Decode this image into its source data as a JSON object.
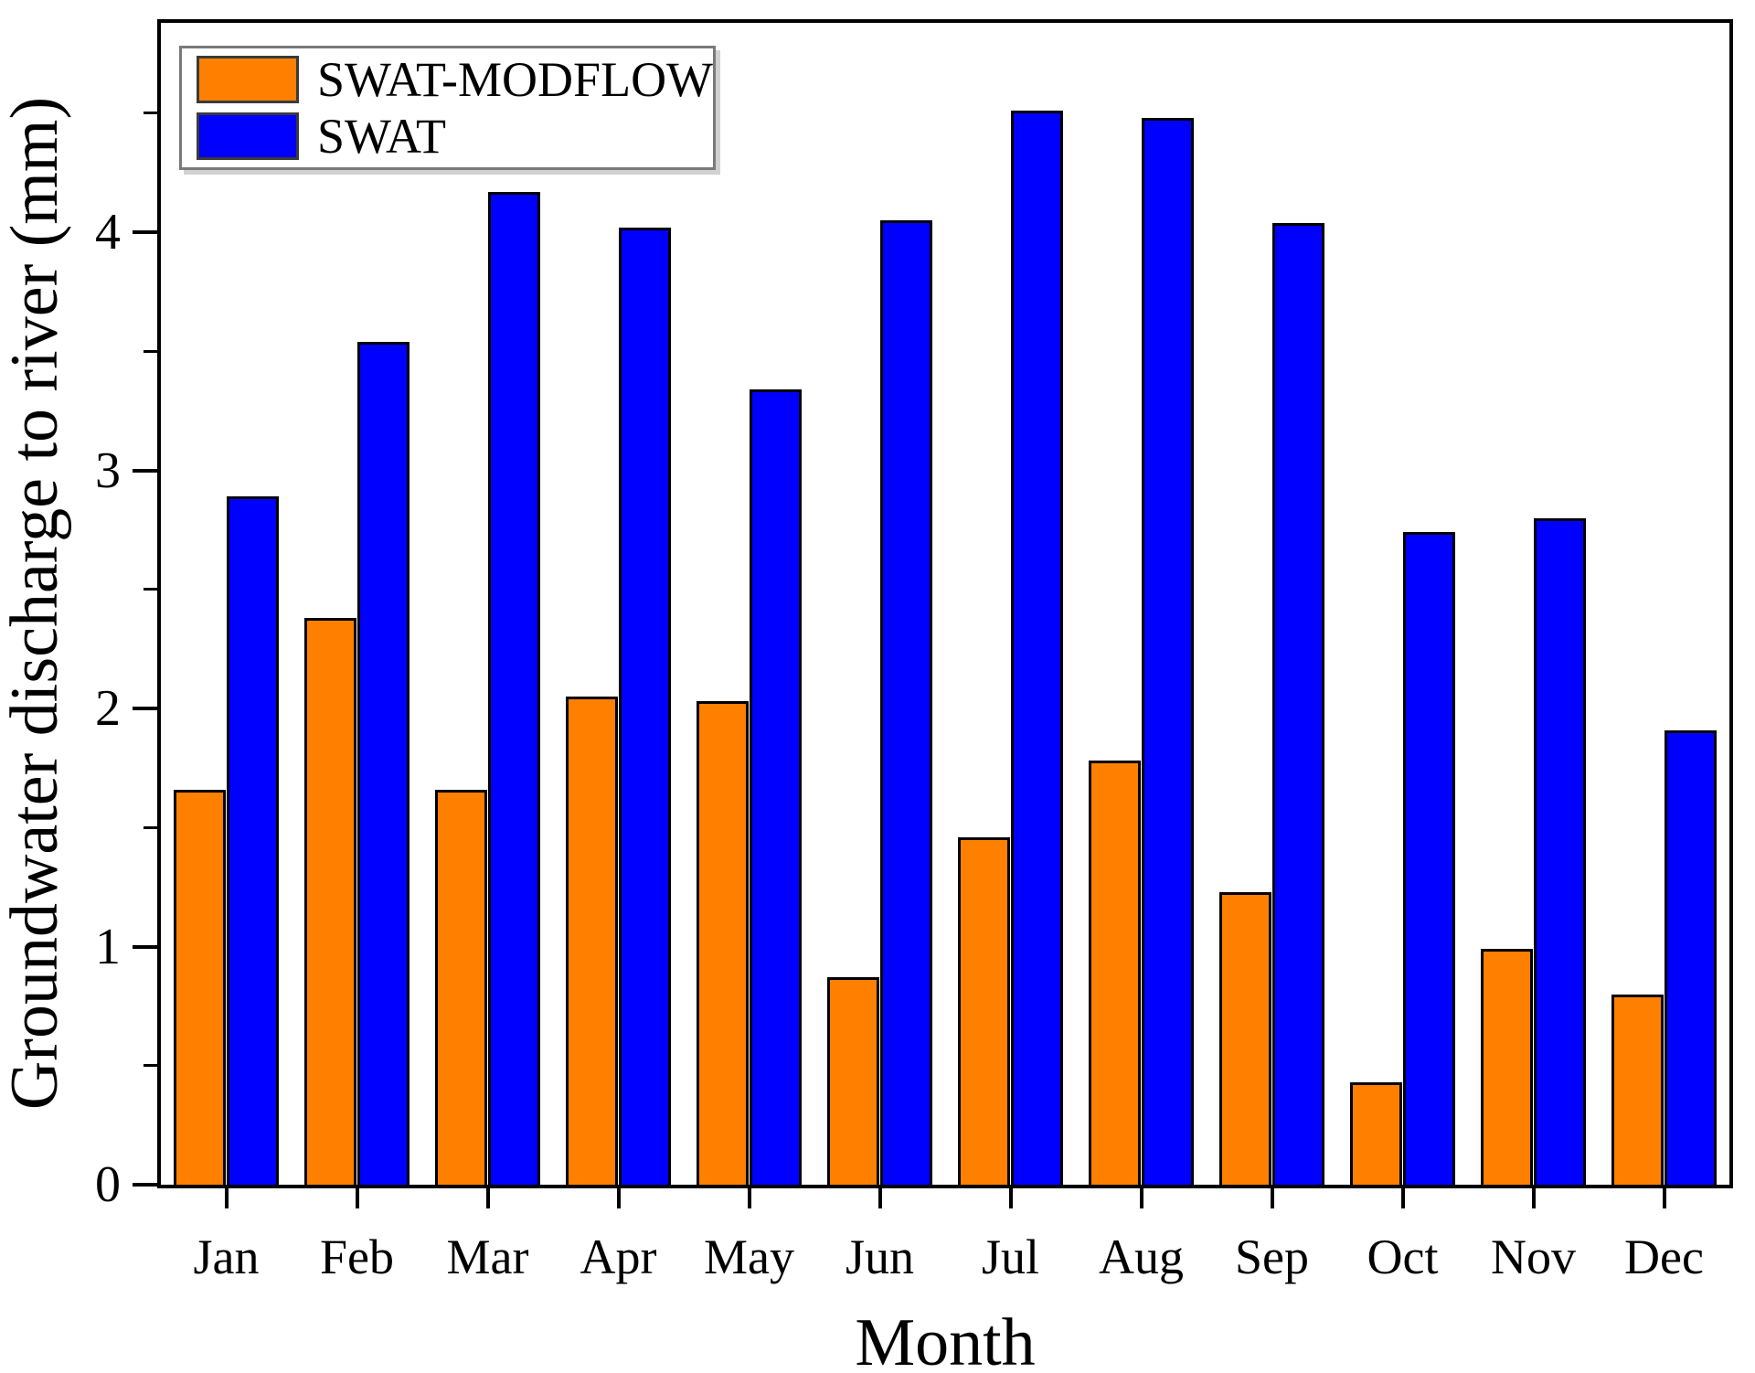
{
  "chart_data": {
    "type": "bar",
    "title": "",
    "categories": [
      "Jan",
      "Feb",
      "Mar",
      "Apr",
      "May",
      "Jun",
      "Jul",
      "Aug",
      "Sep",
      "Oct",
      "Nov",
      "Dec"
    ],
    "series": [
      {
        "name": "SWAT-MODFLOW",
        "color": "#FF8000",
        "values": [
          1.66,
          2.38,
          1.66,
          2.05,
          2.03,
          0.87,
          1.46,
          1.78,
          1.23,
          0.43,
          0.99,
          0.8
        ]
      },
      {
        "name": "SWAT",
        "color": "#0000FF",
        "values": [
          2.89,
          3.54,
          4.17,
          4.02,
          3.34,
          4.05,
          4.51,
          4.48,
          4.04,
          2.74,
          2.8,
          1.91
        ]
      }
    ],
    "xlabel": "Month",
    "ylabel": "Groundwater discharge to river (mm)",
    "ylim": [
      0,
      4.88
    ],
    "y_major_ticks": [
      0,
      1,
      2,
      3,
      4
    ],
    "y_minor_tick_interval": 0.5,
    "grid": false,
    "legend_position": "top-left",
    "bar_outline_color": "#000000",
    "axis_color": "#000000"
  }
}
